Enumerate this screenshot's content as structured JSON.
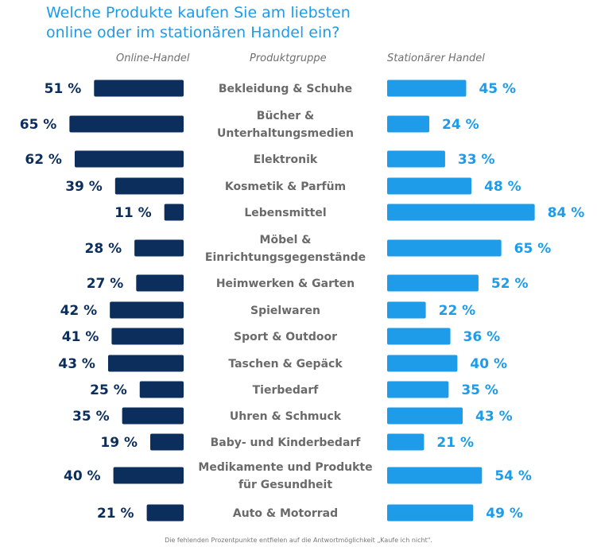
{
  "title_line1": "Welche Produkte kaufen Sie am liebsten",
  "title_line2": "online oder im stationären Handel ein?",
  "headers": {
    "left": "Online-Handel",
    "center": "Produktgruppe",
    "right": "Stationärer Handel"
  },
  "footnote": "Die fehlenden Prozentpunkte entfielen auf die Antwortmöglichkeit „Kaufe ich nicht\".",
  "colors": {
    "online": "#0c2e5c",
    "stationaer": "#1e9be9",
    "title": "#1e9be9",
    "category": "#6a6a6a"
  },
  "chart_data": {
    "type": "bar",
    "unit": "%",
    "xlim": [
      0,
      100
    ],
    "categories": [
      [
        "Bekleidung & Schuhe"
      ],
      [
        "Bücher &",
        "Unterhaltungsmedien"
      ],
      [
        "Elektronik"
      ],
      [
        "Kosmetik & Parfüm"
      ],
      [
        "Lebensmittel"
      ],
      [
        "Möbel &",
        "Einrichtungsgegenstände"
      ],
      [
        "Heimwerken & Garten"
      ],
      [
        "Spielwaren"
      ],
      [
        "Sport & Outdoor"
      ],
      [
        "Taschen & Gepäck"
      ],
      [
        "Tierbedarf"
      ],
      [
        "Uhren & Schmuck"
      ],
      [
        "Baby- und Kinderbedarf"
      ],
      [
        "Medikamente und Produkte",
        "für Gesundheit"
      ],
      [
        "Auto & Motorrad"
      ]
    ],
    "series": [
      {
        "name": "Online-Handel",
        "values": [
          51,
          65,
          62,
          39,
          11,
          28,
          27,
          42,
          41,
          43,
          25,
          35,
          19,
          40,
          21
        ]
      },
      {
        "name": "Stationärer Handel",
        "values": [
          45,
          24,
          33,
          48,
          84,
          65,
          52,
          22,
          36,
          40,
          35,
          43,
          21,
          54,
          49
        ]
      }
    ]
  }
}
